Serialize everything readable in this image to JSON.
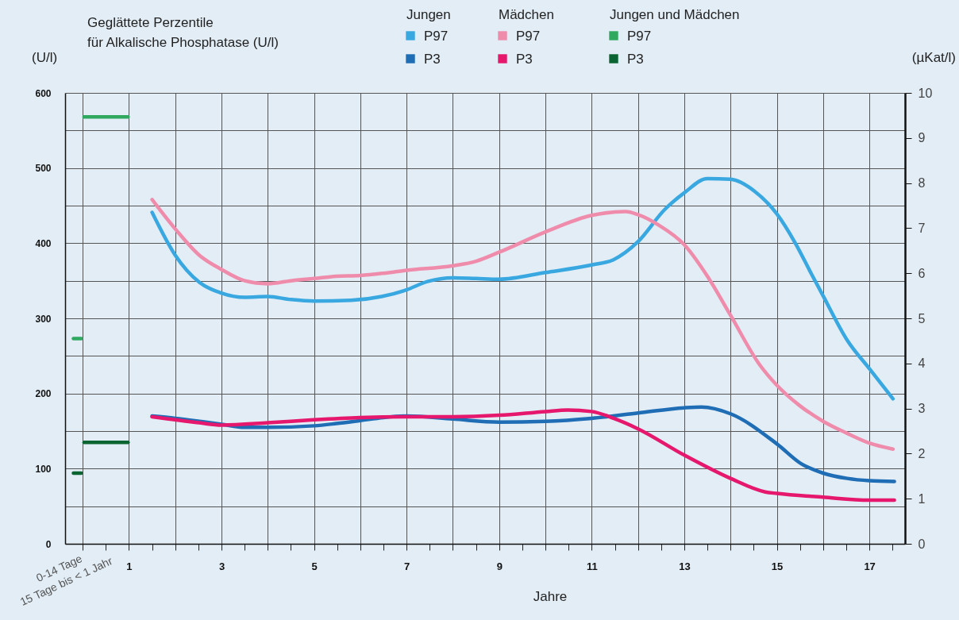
{
  "chart_data": {
    "type": "line",
    "title": "Geglättete Perzentile\nfür Alkalische Phosphatase (U/l)",
    "xlabel": "Jahre",
    "ylabel": "(U/l)",
    "y2label": "(µKat/l)",
    "annotations": [
      "Jungen",
      "Mädchen",
      "Jungen und Mädchen",
      "0-14 Tage",
      "15 Tage bis < 1 Jahr"
    ],
    "xlim": [
      -0.38,
      17.77
    ],
    "xticks": [
      {
        "value": 0,
        "label": null
      },
      {
        "value": 0.5,
        "label": null
      },
      1,
      {
        "value": 1.5,
        "label": null
      },
      {
        "value": 2,
        "label": null
      },
      {
        "value": 2.5,
        "label": null
      },
      3,
      {
        "value": 3.5,
        "label": null
      },
      {
        "value": 4,
        "label": null
      },
      {
        "value": 4.5,
        "label": null
      },
      5,
      {
        "value": 5.5,
        "label": null
      },
      {
        "value": 6,
        "label": null
      },
      {
        "value": 6.5,
        "label": null
      },
      7,
      {
        "value": 7.5,
        "label": null
      },
      {
        "value": 8,
        "label": null
      },
      {
        "value": 8.5,
        "label": null
      },
      9,
      {
        "value": 9.5,
        "label": null
      },
      {
        "value": 10,
        "label": null
      },
      {
        "value": 10.5,
        "label": null
      },
      11,
      {
        "value": 11.5,
        "label": null
      },
      {
        "value": 12,
        "label": null
      },
      {
        "value": 12.5,
        "label": null
      },
      13,
      {
        "value": 13.5,
        "label": null
      },
      {
        "value": 14,
        "label": null
      },
      {
        "value": 14.5,
        "label": null
      },
      15,
      {
        "value": 15.5,
        "label": null
      },
      {
        "value": 16,
        "label": null
      },
      {
        "value": 16.5,
        "label": null
      },
      17,
      {
        "value": 17.5,
        "label": null
      }
    ],
    "ylim": [
      0,
      600
    ],
    "yticks": [
      0,
      {
        "value": 50,
        "label": null
      },
      100,
      {
        "value": 150,
        "label": null
      },
      200,
      {
        "value": 250,
        "label": null
      },
      300,
      {
        "value": 350,
        "label": null
      },
      400,
      {
        "value": 450,
        "label": null
      },
      500,
      {
        "value": 550,
        "label": null
      },
      600
    ],
    "y2lim": [
      0,
      10
    ],
    "y2ticks": [
      0,
      1,
      2,
      3,
      4,
      5,
      6,
      7,
      8,
      9,
      10
    ],
    "grid": true,
    "legend": "top",
    "line_style": "solid",
    "series": [
      {
        "name": "P97",
        "color": "#3aa8e0",
        "x": [
          1.5,
          2,
          2.52,
          2.98,
          3.5,
          4,
          4.5,
          5,
          5.8,
          6.46,
          7,
          7.45,
          8,
          8.5,
          9,
          10,
          11,
          11.47,
          12,
          12.58,
          13,
          13.5,
          14,
          14.52,
          15,
          15.4,
          15.74,
          16,
          16.52,
          17,
          17.51
        ],
        "values": [
          441,
          384,
          348,
          334,
          328,
          329,
          325,
          323,
          324,
          329,
          338,
          349,
          354,
          353,
          352,
          361,
          371,
          378,
          402,
          445,
          467,
          486,
          485,
          469,
          439,
          400,
          360,
          330,
          271,
          233,
          193
        ]
      },
      {
        "name": "P3",
        "color": "#1f6db5",
        "x": [
          1.5,
          2,
          2.52,
          3,
          3.5,
          4,
          5,
          5.48,
          6,
          6.5,
          7,
          8,
          9,
          10,
          11,
          12,
          13,
          13.37,
          14,
          15,
          15.54,
          16,
          16.52,
          17,
          17.54
        ],
        "values": [
          170,
          167,
          163,
          159,
          155,
          155,
          157,
          160,
          164,
          168,
          170,
          166,
          162,
          163,
          167,
          174,
          181,
          182,
          173,
          133,
          106,
          94,
          87,
          84,
          83
        ]
      },
      {
        "name": "P97",
        "color": "#f08cab",
        "x": [
          1.5,
          2,
          2.52,
          3,
          3.5,
          4,
          4.5,
          5,
          5.48,
          6,
          6.5,
          7,
          8,
          8.5,
          9,
          10,
          11,
          11.73,
          12,
          12.45,
          13,
          13.5,
          14,
          14.62,
          15,
          15.47,
          16,
          16.52,
          17,
          17.51
        ],
        "values": [
          458,
          419,
          384,
          365,
          350,
          346,
          350,
          353,
          356,
          357,
          360,
          364,
          370,
          376,
          388,
          415,
          437,
          442,
          438,
          424,
          398,
          356,
          304,
          239,
          211,
          185,
          163,
          147,
          134,
          126
        ]
      },
      {
        "name": "P3",
        "color": "#e5186d",
        "x": [
          1.5,
          2.52,
          3,
          4,
          5,
          6,
          7,
          8,
          9,
          10,
          10.48,
          11,
          11.47,
          12,
          13,
          14,
          14.75,
          15,
          16,
          17,
          17.54
        ],
        "values": [
          169,
          161,
          158,
          161,
          165,
          168,
          169,
          169,
          171,
          176,
          178,
          176,
          167,
          153,
          118,
          87,
          69,
          67,
          62,
          58,
          58
        ]
      },
      {
        "name": "P97",
        "color": "#2fa860",
        "x": [
          -0.2,
          -0.03,
          0,
          0.03,
          0.98
        ],
        "values": [
          273,
          273,
          null,
          568,
          568
        ]
      },
      {
        "name": "P3",
        "color": "#0a6532",
        "x": [
          -0.2,
          -0.03,
          0,
          0.03,
          0.98
        ],
        "values": [
          94,
          94,
          null,
          135,
          135
        ]
      }
    ]
  }
}
